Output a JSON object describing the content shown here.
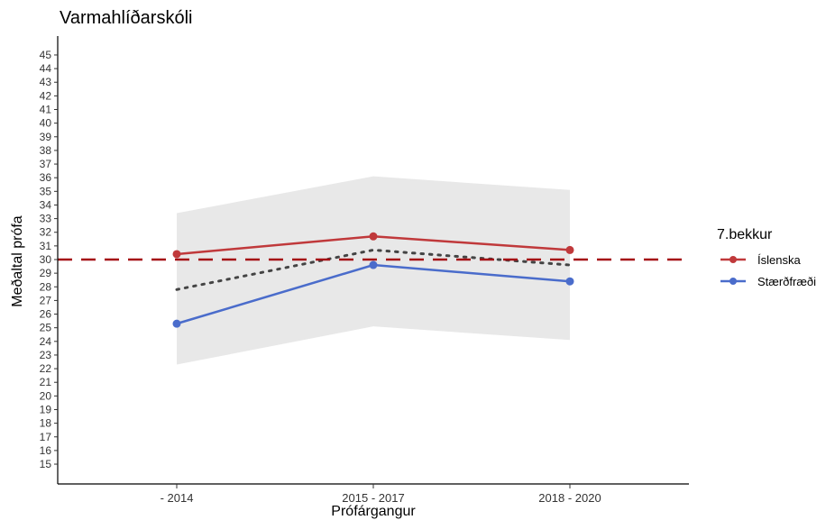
{
  "chart_data": {
    "type": "line",
    "title": "Varmahlíðarskóli",
    "xlabel": "Prófárgangur",
    "ylabel": "Meðaltal prófa",
    "categories": [
      "- 2014",
      "2015 - 2017",
      "2018 - 2020"
    ],
    "ylim": [
      13.5,
      47
    ],
    "yticks": [
      15,
      16,
      17,
      18,
      19,
      20,
      21,
      22,
      23,
      24,
      25,
      26,
      27,
      28,
      29,
      30,
      31,
      32,
      33,
      34,
      35,
      36,
      37,
      38,
      39,
      40,
      41,
      42,
      43,
      44,
      45
    ],
    "series": [
      {
        "name": "Íslenska",
        "values": [
          30.4,
          31.7,
          30.7
        ],
        "color": "#C0393B"
      },
      {
        "name": "Stærðfræði",
        "values": [
          25.3,
          29.6,
          28.4
        ],
        "color": "#4A6CCB"
      }
    ],
    "national_average": {
      "value": 29.8,
      "style": "dotted",
      "color": "#444444"
    },
    "range_band": {
      "lower": [
        22.3,
        25.1,
        24.1
      ],
      "upper": [
        33.4,
        36.1,
        35.1
      ],
      "color": "#E8E8E8"
    },
    "reference_line": {
      "value": 30,
      "style": "dashed",
      "color": "#A50F15"
    },
    "legend": {
      "title": "7.bekkur",
      "position": "right"
    },
    "grid": false
  }
}
